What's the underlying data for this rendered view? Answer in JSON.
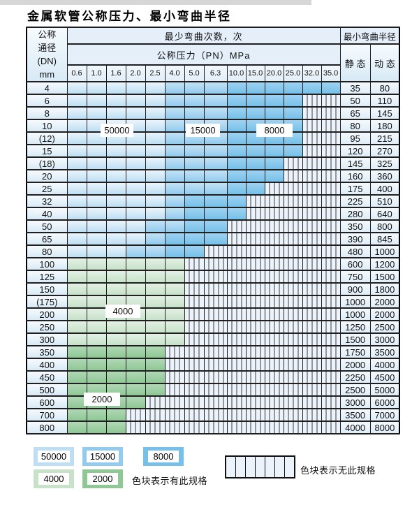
{
  "page": {
    "title": "金属软管公称压力、最小弯曲半径"
  },
  "table": {
    "dn_header_lines": [
      "公称",
      "通径",
      "(DN)",
      "mm"
    ],
    "cycles_header": "最少弯曲次数，次",
    "pressure_header": "公称压力（PN）MPa",
    "radius_header": "最小弯曲半径",
    "static_header": "静 态",
    "dynamic_header": "动 态"
  },
  "chart_data": {
    "type": "table",
    "title": "金属软管公称压力、最小弯曲半径",
    "pressure_columns_MPa": [
      "0.6",
      "1.0",
      "1.6",
      "2.0",
      "2.5",
      "4.0",
      "5.0",
      "6.3",
      "10.0",
      "15.0",
      "20.0",
      "25.0",
      "32.0",
      "35.0"
    ],
    "cycle_bands": {
      "50": "50000",
      "15": "15000",
      "8": "8000",
      "4": "4000",
      "2": "2000",
      "x": "无此规格"
    },
    "inline_labels": [
      "50000",
      "15000",
      "8000",
      "4000",
      "2000"
    ],
    "rows": [
      {
        "dn": "4",
        "cells": [
          "50",
          "50",
          "50",
          "50",
          "50",
          "15",
          "15",
          "15",
          "8",
          "8",
          "8",
          "8",
          "8",
          "8"
        ],
        "static": "35",
        "dynamic": "80"
      },
      {
        "dn": "6",
        "cells": [
          "50",
          "50",
          "50",
          "50",
          "50",
          "15",
          "15",
          "15",
          "8",
          "8",
          "8",
          "8",
          "x",
          "x"
        ],
        "static": "50",
        "dynamic": "110"
      },
      {
        "dn": "8",
        "cells": [
          "50",
          "50",
          "50",
          "50",
          "50",
          "15",
          "15",
          "15",
          "8",
          "8",
          "8",
          "8",
          "x",
          "x"
        ],
        "static": "65",
        "dynamic": "145"
      },
      {
        "dn": "10",
        "cells": [
          "50",
          "50",
          "50",
          "50",
          "50",
          "15",
          "15",
          "15",
          "8",
          "8",
          "8",
          "8",
          "x",
          "x"
        ],
        "static": "80",
        "dynamic": "180"
      },
      {
        "dn": "(12)",
        "cells": [
          "50",
          "50",
          "50",
          "50",
          "50",
          "15",
          "15",
          "15",
          "8",
          "8",
          "8",
          "8",
          "x",
          "x"
        ],
        "static": "95",
        "dynamic": "215"
      },
      {
        "dn": "15",
        "cells": [
          "50",
          "50",
          "50",
          "50",
          "50",
          "15",
          "15",
          "15",
          "8",
          "8",
          "8",
          "8",
          "x",
          "x"
        ],
        "static": "120",
        "dynamic": "270"
      },
      {
        "dn": "(18)",
        "cells": [
          "50",
          "50",
          "50",
          "50",
          "50",
          "15",
          "15",
          "15",
          "8",
          "8",
          "8",
          "x",
          "x",
          "x"
        ],
        "static": "145",
        "dynamic": "325"
      },
      {
        "dn": "20",
        "cells": [
          "50",
          "50",
          "50",
          "50",
          "50",
          "15",
          "15",
          "15",
          "8",
          "8",
          "8",
          "x",
          "x",
          "x"
        ],
        "static": "160",
        "dynamic": "360"
      },
      {
        "dn": "25",
        "cells": [
          "50",
          "50",
          "50",
          "50",
          "50",
          "15",
          "15",
          "15",
          "8",
          "8",
          "x",
          "x",
          "x",
          "x"
        ],
        "static": "175",
        "dynamic": "400"
      },
      {
        "dn": "32",
        "cells": [
          "50",
          "50",
          "50",
          "50",
          "50",
          "15",
          "8",
          "8",
          "8",
          "x",
          "x",
          "x",
          "x",
          "x"
        ],
        "static": "225",
        "dynamic": "510"
      },
      {
        "dn": "40",
        "cells": [
          "50",
          "50",
          "50",
          "50",
          "50",
          "15",
          "8",
          "8",
          "8",
          "x",
          "x",
          "x",
          "x",
          "x"
        ],
        "static": "280",
        "dynamic": "640"
      },
      {
        "dn": "50",
        "cells": [
          "50",
          "50",
          "50",
          "50",
          "15",
          "15",
          "8",
          "8",
          "x",
          "x",
          "x",
          "x",
          "x",
          "x"
        ],
        "static": "350",
        "dynamic": "800"
      },
      {
        "dn": "65",
        "cells": [
          "50",
          "50",
          "50",
          "50",
          "15",
          "8",
          "8",
          "8",
          "x",
          "x",
          "x",
          "x",
          "x",
          "x"
        ],
        "static": "390",
        "dynamic": "845"
      },
      {
        "dn": "80",
        "cells": [
          "50",
          "50",
          "50",
          "15",
          "15",
          "8",
          "8",
          "x",
          "x",
          "x",
          "x",
          "x",
          "x",
          "x"
        ],
        "static": "480",
        "dynamic": "1000"
      },
      {
        "dn": "100",
        "cells": [
          "4",
          "4",
          "4",
          "4",
          "4",
          "4",
          "x",
          "x",
          "x",
          "x",
          "x",
          "x",
          "x",
          "x"
        ],
        "static": "600",
        "dynamic": "1200"
      },
      {
        "dn": "125",
        "cells": [
          "4",
          "4",
          "4",
          "4",
          "4",
          "4",
          "x",
          "x",
          "x",
          "x",
          "x",
          "x",
          "x",
          "x"
        ],
        "static": "750",
        "dynamic": "1500"
      },
      {
        "dn": "150",
        "cells": [
          "4",
          "4",
          "4",
          "4",
          "4",
          "4",
          "x",
          "x",
          "x",
          "x",
          "x",
          "x",
          "x",
          "x"
        ],
        "static": "900",
        "dynamic": "1800"
      },
      {
        "dn": "(175)",
        "cells": [
          "4",
          "4",
          "4",
          "4",
          "4",
          "4",
          "x",
          "x",
          "x",
          "x",
          "x",
          "x",
          "x",
          "x"
        ],
        "static": "1000",
        "dynamic": "2000"
      },
      {
        "dn": "200",
        "cells": [
          "4",
          "4",
          "4",
          "4",
          "4",
          "4",
          "x",
          "x",
          "x",
          "x",
          "x",
          "x",
          "x",
          "x"
        ],
        "static": "1000",
        "dynamic": "2000"
      },
      {
        "dn": "250",
        "cells": [
          "4",
          "4",
          "4",
          "4",
          "4",
          "4",
          "x",
          "x",
          "x",
          "x",
          "x",
          "x",
          "x",
          "x"
        ],
        "static": "1250",
        "dynamic": "2500"
      },
      {
        "dn": "300",
        "cells": [
          "4",
          "4",
          "4",
          "4",
          "4",
          "4",
          "x",
          "x",
          "x",
          "x",
          "x",
          "x",
          "x",
          "x"
        ],
        "static": "1500",
        "dynamic": "3000"
      },
      {
        "dn": "350",
        "cells": [
          "2",
          "2",
          "2",
          "2",
          "2",
          "x",
          "x",
          "x",
          "x",
          "x",
          "x",
          "x",
          "x",
          "x"
        ],
        "static": "1750",
        "dynamic": "3500"
      },
      {
        "dn": "400",
        "cells": [
          "2",
          "2",
          "2",
          "2",
          "2",
          "x",
          "x",
          "x",
          "x",
          "x",
          "x",
          "x",
          "x",
          "x"
        ],
        "static": "2000",
        "dynamic": "4000"
      },
      {
        "dn": "450",
        "cells": [
          "2",
          "2",
          "2",
          "2",
          "2",
          "x",
          "x",
          "x",
          "x",
          "x",
          "x",
          "x",
          "x",
          "x"
        ],
        "static": "2250",
        "dynamic": "4500"
      },
      {
        "dn": "500",
        "cells": [
          "2",
          "2",
          "2",
          "2",
          "2",
          "x",
          "x",
          "x",
          "x",
          "x",
          "x",
          "x",
          "x",
          "x"
        ],
        "static": "2500",
        "dynamic": "5000"
      },
      {
        "dn": "600",
        "cells": [
          "2",
          "2",
          "2",
          "2",
          "x",
          "x",
          "x",
          "x",
          "x",
          "x",
          "x",
          "x",
          "x",
          "x"
        ],
        "static": "3000",
        "dynamic": "6000"
      },
      {
        "dn": "700",
        "cells": [
          "2",
          "2",
          "2",
          "x",
          "x",
          "x",
          "x",
          "x",
          "x",
          "x",
          "x",
          "x",
          "x",
          "x"
        ],
        "static": "3500",
        "dynamic": "7000"
      },
      {
        "dn": "800",
        "cells": [
          "2",
          "2",
          "2",
          "x",
          "x",
          "x",
          "x",
          "x",
          "x",
          "x",
          "x",
          "x",
          "x",
          "x"
        ],
        "static": "4000",
        "dynamic": "8000"
      }
    ]
  },
  "legend": {
    "swatches": [
      "50000",
      "15000",
      "8000",
      "4000",
      "2000"
    ],
    "has_spec_text": "色块表示有此规格",
    "no_spec_text": "色块表示无此规格"
  },
  "colors": {
    "band_50000": [
      "#e9f4fb",
      "#bedff3"
    ],
    "band_15000": [
      "#c3e2f5",
      "#92cbee"
    ],
    "band_8000": [
      "#9ed2f1",
      "#76c0e9"
    ],
    "band_4000": [
      "#e3f0e4",
      "#c7e2c9"
    ],
    "band_2000": [
      "#b0d8b5",
      "#8fc795"
    ],
    "hatch_bg": "#ecf3fa",
    "hatch_line": "#3a3a3a",
    "grid_line": "#1f1f1f",
    "label_cell_top": "#f6fbfe",
    "label_cell_bottom": "#d8eaf6",
    "header_bg": "#e4effa"
  }
}
